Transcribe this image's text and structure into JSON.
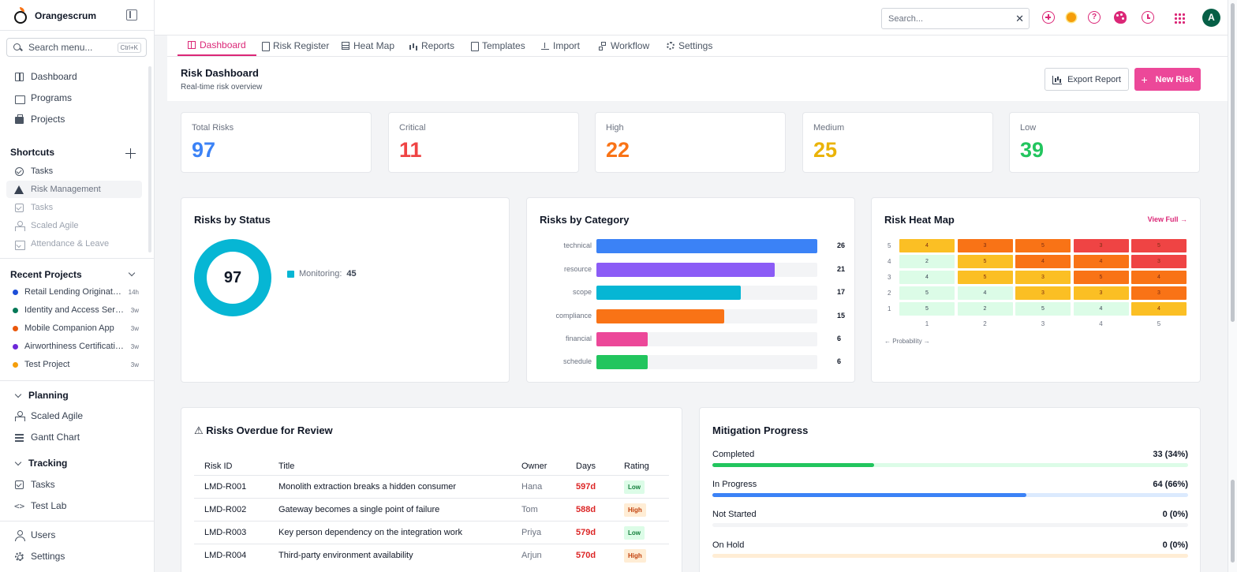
{
  "app": {
    "name": "Orangescrum"
  },
  "sidebar": {
    "search_placeholder": "Search menu...",
    "search_shortcut": "Ctrl+K",
    "main_items": [
      {
        "label": "Dashboard",
        "icon": "dashboard-grid-icon"
      },
      {
        "label": "Programs",
        "icon": "programs-icon"
      },
      {
        "label": "Projects",
        "icon": "briefcase-icon"
      }
    ],
    "shortcuts_title": "Shortcuts",
    "shortcuts": [
      {
        "label": "Tasks",
        "icon": "check-circle-icon"
      },
      {
        "label": "Risk Management",
        "icon": "warning-triangle-icon"
      },
      {
        "label": "Tasks",
        "icon": "checkbox-icon"
      },
      {
        "label": "Scaled Agile",
        "icon": "agile-icon"
      },
      {
        "label": "Attendance & Leave",
        "icon": "calendar-check-icon"
      }
    ],
    "recent_title": "Recent Projects",
    "recent_projects": [
      {
        "name": "Retail Lending Origination",
        "time": "14h",
        "color": "#1d4ed8"
      },
      {
        "name": "Identity and Access Servi...",
        "time": "3w",
        "color": "#047857"
      },
      {
        "name": "Mobile Companion App",
        "time": "3w",
        "color": "#ea580c"
      },
      {
        "name": "Airworthiness Certification",
        "time": "3w",
        "color": "#6d28d9"
      },
      {
        "name": "Test Project",
        "time": "3w",
        "color": "#f59e0b"
      }
    ],
    "planning_title": "Planning",
    "planning_items": [
      {
        "label": "Scaled Agile",
        "icon": "agile-icon"
      },
      {
        "label": "Gantt Chart",
        "icon": "gantt-icon"
      }
    ],
    "tracking_title": "Tracking",
    "tracking_items": [
      {
        "label": "Tasks",
        "icon": "checkbox-icon"
      },
      {
        "label": "Test Lab",
        "icon": "code-icon"
      }
    ],
    "bottom_items": [
      {
        "label": "Users",
        "icon": "user-icon"
      },
      {
        "label": "Settings",
        "icon": "gear-icon"
      }
    ]
  },
  "topbar": {
    "search_placeholder": "Search...",
    "clear": "✕",
    "avatar_initial": "A"
  },
  "tabs": [
    {
      "label": "Dashboard",
      "icon": "dashboard-grid-icon",
      "active": true
    },
    {
      "label": "Risk Register",
      "icon": "document-icon"
    },
    {
      "label": "Heat Map",
      "icon": "table-grid-icon"
    },
    {
      "label": "Reports",
      "icon": "bar-chart-icon"
    },
    {
      "label": "Templates",
      "icon": "template-icon"
    },
    {
      "label": "Import",
      "icon": "upload-icon"
    },
    {
      "label": "Workflow",
      "icon": "workflow-icon"
    },
    {
      "label": "Settings",
      "icon": "gear-icon"
    }
  ],
  "header": {
    "title": "Risk Dashboard",
    "subtitle": "Real-time risk overview",
    "export_label": "Export Report",
    "new_label": "New Risk",
    "new_plus": "+"
  },
  "stats": [
    {
      "label": "Total Risks",
      "value": "97",
      "color": "#3b82f6"
    },
    {
      "label": "Critical",
      "value": "11",
      "color": "#ef4444"
    },
    {
      "label": "High",
      "value": "22",
      "color": "#f97316"
    },
    {
      "label": "Medium",
      "value": "25",
      "color": "#eab308"
    },
    {
      "label": "Low",
      "value": "39",
      "color": "#22c55e"
    }
  ],
  "status_panel": {
    "title": "Risks by Status",
    "total": "97",
    "legend_label": "Monitoring:",
    "legend_value": "45",
    "color": "#06b6d4"
  },
  "category_panel": {
    "title": "Risks by Category",
    "max": 26,
    "items": [
      {
        "name": "technical",
        "value": 26,
        "color": "#3b82f6"
      },
      {
        "name": "resource",
        "value": 21,
        "color": "#8b5cf6"
      },
      {
        "name": "scope",
        "value": 17,
        "color": "#06b6d4"
      },
      {
        "name": "compliance",
        "value": 15,
        "color": "#f97316"
      },
      {
        "name": "financial",
        "value": 6,
        "color": "#ec4899"
      },
      {
        "name": "schedule",
        "value": 6,
        "color": "#22c55e"
      }
    ]
  },
  "heatmap": {
    "title": "Risk Heat Map",
    "view_full": "View Full →",
    "axis_label": "← Probability →",
    "rows": [
      {
        "impact": "5",
        "cells": [
          "4",
          "3",
          "5",
          "3",
          "5"
        ]
      },
      {
        "impact": "4",
        "cells": [
          "2",
          "5",
          "4",
          "4",
          "3"
        ]
      },
      {
        "impact": "3",
        "cells": [
          "4",
          "5",
          "3",
          "5",
          "4"
        ]
      },
      {
        "impact": "2",
        "cells": [
          "5",
          "4",
          "3",
          "3",
          "3"
        ]
      },
      {
        "impact": "1",
        "cells": [
          "5",
          "2",
          "5",
          "4",
          "4"
        ]
      }
    ],
    "levels": [
      [
        "medium",
        "high",
        "high",
        "critical",
        "critical"
      ],
      [
        "low",
        "medium",
        "high",
        "high",
        "critical"
      ],
      [
        "low",
        "medium",
        "medium",
        "high",
        "high"
      ],
      [
        "low",
        "low",
        "medium",
        "medium",
        "high"
      ],
      [
        "low",
        "low",
        "low",
        "low",
        "medium"
      ]
    ],
    "colors": {
      "low": "#dcfce7",
      "medium": "#fbbf24",
      "high": "#f97316",
      "critical": "#ef4444"
    },
    "x_labels": [
      "1",
      "2",
      "3",
      "4",
      "5"
    ]
  },
  "overdue": {
    "title": "⚠ Risks Overdue for Review",
    "headers": [
      "Risk ID",
      "Title",
      "Owner",
      "Days",
      "Rating"
    ],
    "rows": [
      {
        "id": "LMD-R001",
        "title": "Monolith extraction breaks a hidden consumer",
        "owner": "Hana",
        "days": "597d",
        "rating": "Low",
        "level": "low"
      },
      {
        "id": "LMD-R002",
        "title": "Gateway becomes a single point of failure",
        "owner": "Tom",
        "days": "588d",
        "rating": "High",
        "level": "high"
      },
      {
        "id": "LMD-R003",
        "title": "Key person dependency on the integration work",
        "owner": "Priya",
        "days": "579d",
        "rating": "Low",
        "level": "low"
      },
      {
        "id": "LMD-R004",
        "title": "Third-party environment availability",
        "owner": "Arjun",
        "days": "570d",
        "rating": "High",
        "level": "high"
      }
    ]
  },
  "mitigation": {
    "title": "Mitigation Progress",
    "items": [
      {
        "label": "Completed",
        "value": "33 (34%)",
        "percent": 34,
        "color": "#22c55e",
        "track": "#dcfce7"
      },
      {
        "label": "In Progress",
        "value": "64 (66%)",
        "percent": 66,
        "color": "#3b82f6",
        "track": "#dbeafe"
      },
      {
        "label": "Not Started",
        "value": "0 (0%)",
        "percent": 0,
        "color": "#9ca3af",
        "track": "#f3f4f6"
      },
      {
        "label": "On Hold",
        "value": "0 (0%)",
        "percent": 0,
        "color": "#f97316",
        "track": "#ffedd5"
      }
    ]
  }
}
